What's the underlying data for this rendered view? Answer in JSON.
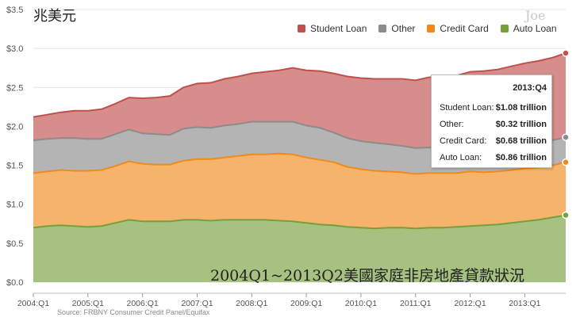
{
  "unit_label": "兆美元",
  "watermark": "Joe",
  "caption": "2004Q1~2013Q2美國家庭非房地產貸款狀況",
  "source": "Source: FRBNY Consumer Credit Panel/Equifax",
  "legend": [
    {
      "name": "Student Loan",
      "color": "#c0504d"
    },
    {
      "name": "Other",
      "color": "#8c8c8c"
    },
    {
      "name": "Credit Card",
      "color": "#f08a1c"
    },
    {
      "name": "Auto Loan",
      "color": "#76a03c"
    }
  ],
  "tooltip": {
    "title": "2013:Q4",
    "rows": [
      {
        "label": "Student Loan:",
        "value": "$1.08 trillion"
      },
      {
        "label": "Other:",
        "value": "$0.32 trillion"
      },
      {
        "label": "Credit Card:",
        "value": "$0.68 trillion"
      },
      {
        "label": "Auto Loan:",
        "value": "$0.86 trillion"
      }
    ]
  },
  "chart_data": {
    "type": "area",
    "stacked": true,
    "x_ticks": [
      "2004:Q1",
      "2005:Q1",
      "2006:Q1",
      "2007:Q1",
      "2008:Q1",
      "2009:Q1",
      "2010:Q1",
      "2011:Q1",
      "2012:Q1",
      "2013:Q1"
    ],
    "y_ticks": [
      "$0.0",
      "$0.5",
      "$1.0",
      "$1.5",
      "$2.0",
      "$2.5",
      "$3.0",
      "$3.5"
    ],
    "ylim": [
      0,
      3.5
    ],
    "quarters_range": [
      0,
      39
    ],
    "grid": true,
    "series": [
      {
        "name": "Auto Loan",
        "color": "#76a03c",
        "values": [
          0.7,
          0.72,
          0.73,
          0.72,
          0.71,
          0.72,
          0.76,
          0.8,
          0.78,
          0.78,
          0.78,
          0.8,
          0.8,
          0.79,
          0.8,
          0.8,
          0.8,
          0.8,
          0.79,
          0.78,
          0.76,
          0.74,
          0.73,
          0.71,
          0.7,
          0.69,
          0.7,
          0.7,
          0.69,
          0.7,
          0.7,
          0.71,
          0.72,
          0.73,
          0.74,
          0.76,
          0.78,
          0.8,
          0.83,
          0.86
        ]
      },
      {
        "name": "Credit Card",
        "color": "#f08a1c",
        "values": [
          0.7,
          0.7,
          0.71,
          0.71,
          0.72,
          0.72,
          0.73,
          0.75,
          0.74,
          0.73,
          0.73,
          0.76,
          0.78,
          0.79,
          0.8,
          0.82,
          0.84,
          0.84,
          0.86,
          0.86,
          0.84,
          0.83,
          0.81,
          0.77,
          0.75,
          0.74,
          0.72,
          0.71,
          0.7,
          0.7,
          0.7,
          0.69,
          0.7,
          0.68,
          0.68,
          0.68,
          0.68,
          0.67,
          0.67,
          0.68
        ]
      },
      {
        "name": "Other",
        "color": "#8c8c8c",
        "values": [
          0.42,
          0.42,
          0.41,
          0.42,
          0.41,
          0.4,
          0.41,
          0.41,
          0.39,
          0.39,
          0.38,
          0.41,
          0.41,
          0.4,
          0.41,
          0.41,
          0.42,
          0.42,
          0.41,
          0.42,
          0.41,
          0.41,
          0.38,
          0.37,
          0.36,
          0.36,
          0.35,
          0.34,
          0.33,
          0.33,
          0.32,
          0.32,
          0.32,
          0.32,
          0.32,
          0.32,
          0.32,
          0.32,
          0.32,
          0.32
        ]
      },
      {
        "name": "Student Loan",
        "color": "#c0504d",
        "values": [
          0.3,
          0.31,
          0.33,
          0.35,
          0.36,
          0.38,
          0.39,
          0.41,
          0.45,
          0.47,
          0.5,
          0.53,
          0.56,
          0.58,
          0.6,
          0.61,
          0.62,
          0.64,
          0.66,
          0.69,
          0.71,
          0.73,
          0.76,
          0.79,
          0.81,
          0.82,
          0.84,
          0.86,
          0.87,
          0.9,
          0.91,
          0.93,
          0.96,
          0.98,
          0.99,
          1.01,
          1.03,
          1.05,
          1.06,
          1.08
        ]
      }
    ]
  }
}
